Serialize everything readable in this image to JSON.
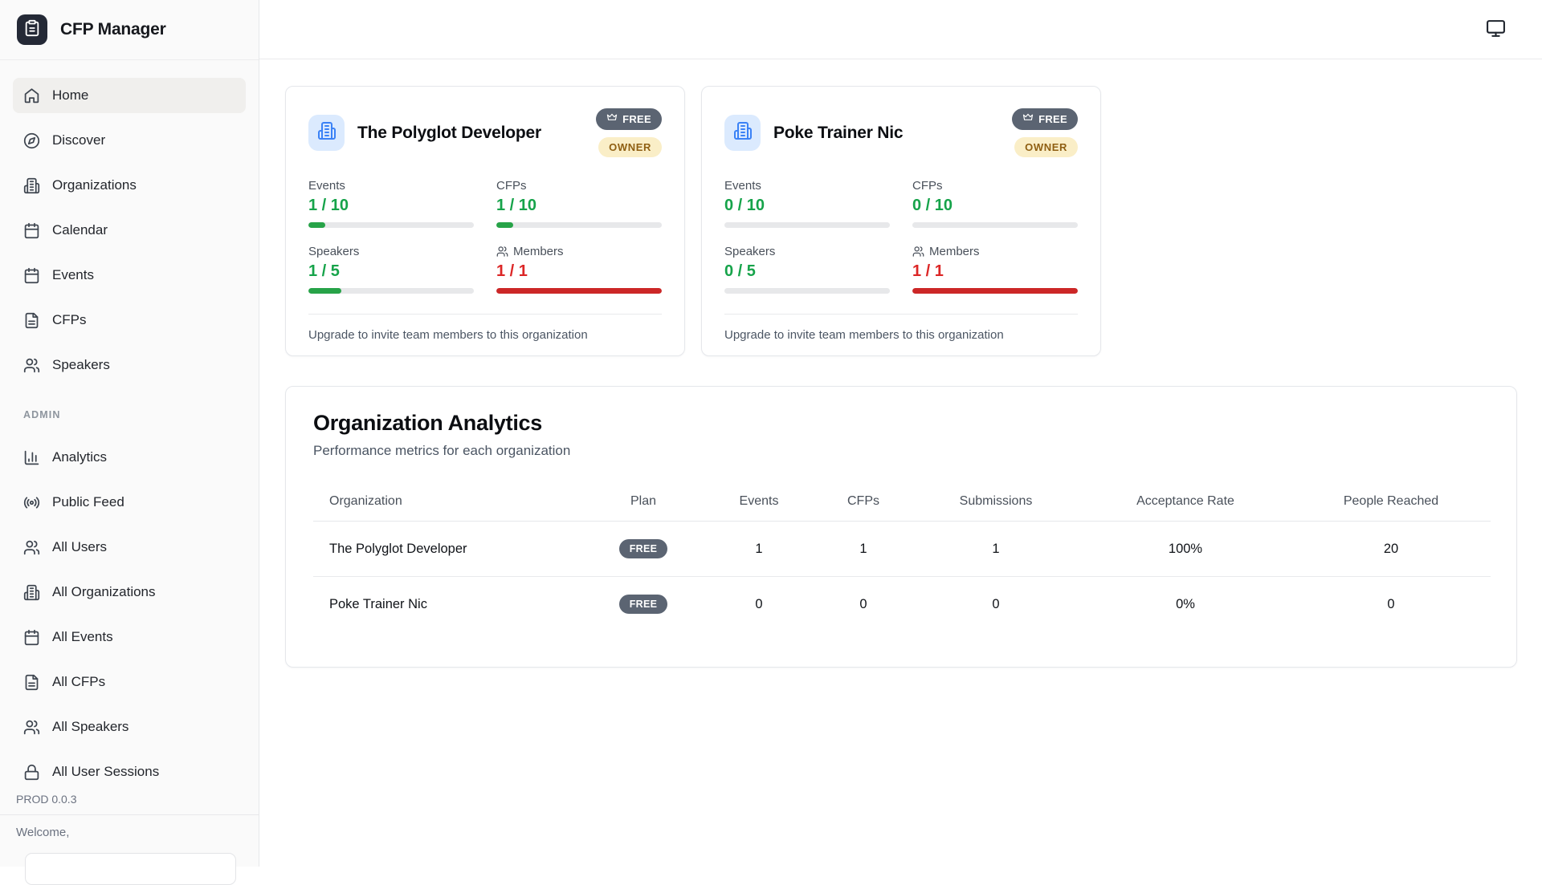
{
  "app": {
    "title": "CFP Manager",
    "version": "PROD 0.0.3",
    "welcome_text": "Welcome,"
  },
  "topbar": {
    "display_icon": "monitor"
  },
  "sidebar": {
    "admin_section_label": "ADMIN",
    "main_items": [
      {
        "label": "Home",
        "icon": "home",
        "active": true
      },
      {
        "label": "Discover",
        "icon": "compass",
        "active": false
      },
      {
        "label": "Organizations",
        "icon": "building",
        "active": false
      },
      {
        "label": "Calendar",
        "icon": "calendar",
        "active": false
      },
      {
        "label": "Events",
        "icon": "calendar",
        "active": false
      },
      {
        "label": "CFPs",
        "icon": "file-text",
        "active": false
      },
      {
        "label": "Speakers",
        "icon": "users",
        "active": false
      }
    ],
    "admin_items": [
      {
        "label": "Analytics",
        "icon": "bar-chart",
        "active": false
      },
      {
        "label": "Public Feed",
        "icon": "radio",
        "active": false
      },
      {
        "label": "All Users",
        "icon": "users",
        "active": false
      },
      {
        "label": "All Organizations",
        "icon": "building",
        "active": false
      },
      {
        "label": "All Events",
        "icon": "calendar",
        "active": false
      },
      {
        "label": "All CFPs",
        "icon": "file-text",
        "active": false
      },
      {
        "label": "All Speakers",
        "icon": "users",
        "active": false
      },
      {
        "label": "All User Sessions",
        "icon": "lock",
        "active": false
      }
    ]
  },
  "org_cards": [
    {
      "name": "The Polyglot Developer",
      "plan_badge": "FREE",
      "role_badge": "OWNER",
      "stats": [
        {
          "label": "Events",
          "value": "1 / 10",
          "pct": 10,
          "color": "green",
          "icon": null
        },
        {
          "label": "CFPs",
          "value": "1 / 10",
          "pct": 10,
          "color": "green",
          "icon": null
        },
        {
          "label": "Speakers",
          "value": "1 / 5",
          "pct": 20,
          "color": "green",
          "icon": null
        },
        {
          "label": "Members",
          "value": "1 / 1",
          "pct": 100,
          "color": "red",
          "icon": "users"
        }
      ],
      "footnote": "Upgrade to invite team members to this organization"
    },
    {
      "name": "Poke Trainer Nic",
      "plan_badge": "FREE",
      "role_badge": "OWNER",
      "stats": [
        {
          "label": "Events",
          "value": "0 / 10",
          "pct": 0,
          "color": "green",
          "icon": null
        },
        {
          "label": "CFPs",
          "value": "0 / 10",
          "pct": 0,
          "color": "green",
          "icon": null
        },
        {
          "label": "Speakers",
          "value": "0 / 5",
          "pct": 0,
          "color": "green",
          "icon": null
        },
        {
          "label": "Members",
          "value": "1 / 1",
          "pct": 100,
          "color": "red",
          "icon": "users"
        }
      ],
      "footnote": "Upgrade to invite team members to this organization"
    }
  ],
  "analytics": {
    "title": "Organization Analytics",
    "subtitle": "Performance metrics for each organization",
    "table": {
      "column_keys": [
        "organization",
        "plan",
        "events",
        "cfps",
        "submissions",
        "acceptance_rate",
        "people_reached"
      ],
      "columns": [
        "Organization",
        "Plan",
        "Events",
        "CFPs",
        "Submissions",
        "Acceptance Rate",
        "People Reached"
      ],
      "rows": [
        {
          "organization": "The Polyglot Developer",
          "plan": "FREE",
          "events": "1",
          "cfps": "1",
          "submissions": "1",
          "acceptance_rate": "100%",
          "people_reached": "20"
        },
        {
          "organization": "Poke Trainer Nic",
          "plan": "FREE",
          "events": "0",
          "cfps": "0",
          "submissions": "0",
          "acceptance_rate": "0%",
          "people_reached": "0"
        }
      ]
    }
  },
  "colors": {
    "stat_green": "#16a34a",
    "stat_red": "#dc2626",
    "bar_green": "#27a348",
    "bar_red": "#cc2727",
    "free_badge_bg": "#5b6472",
    "owner_badge_bg": "#faeec7",
    "owner_badge_text": "#8f5f12",
    "org_icon_blue": "#3b82f6",
    "org_icon_bg": "#dbeafe"
  }
}
